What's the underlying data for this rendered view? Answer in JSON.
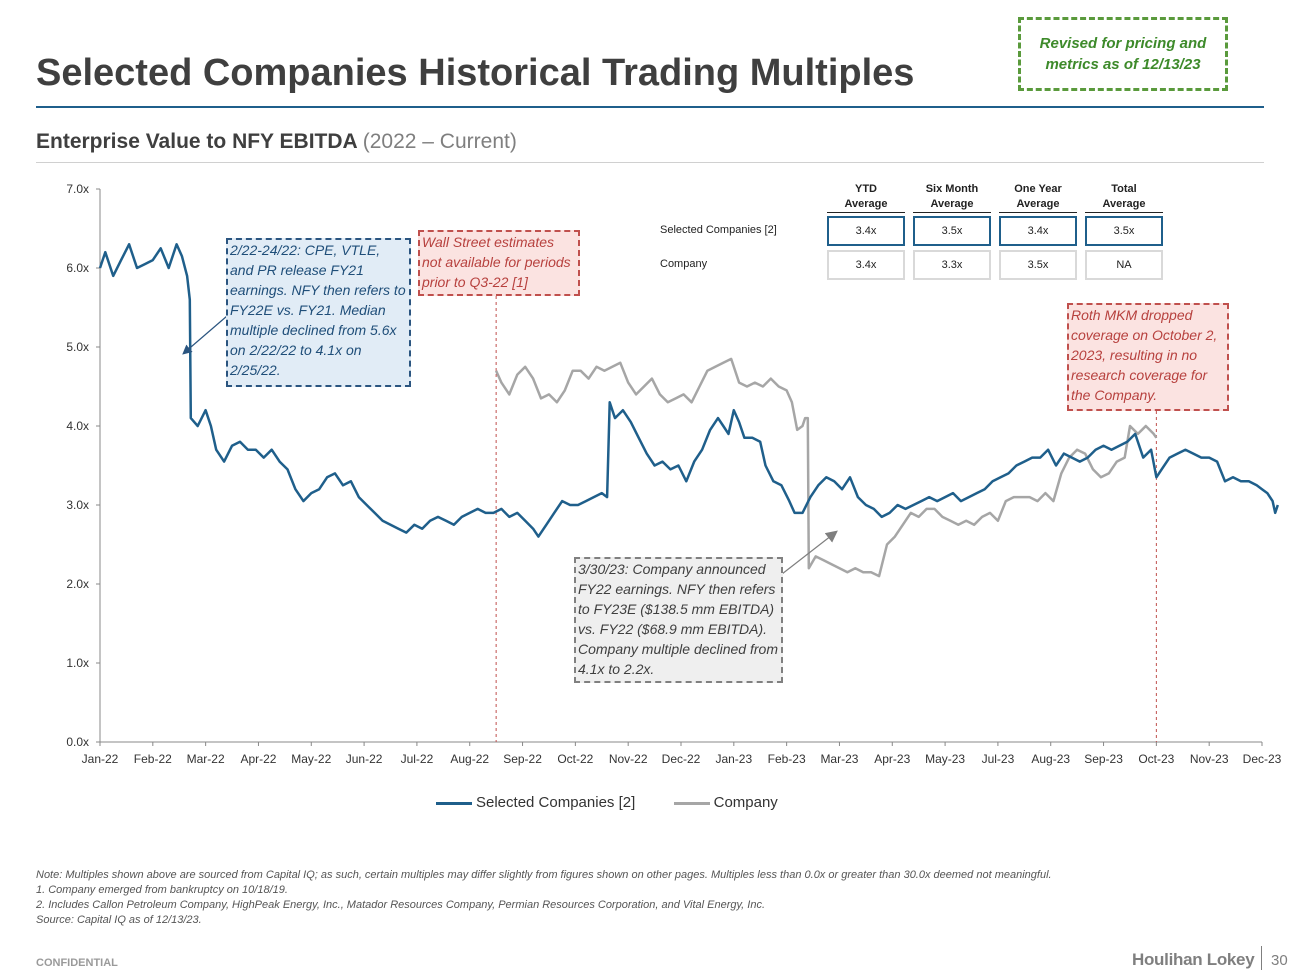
{
  "header": {
    "title": "Selected Companies Historical Trading Multiples",
    "revised_note": "Revised for pricing and metrics as of 12/13/23",
    "subtitle_bold": "Enterprise Value to NFY EBITDA",
    "subtitle_light": "(2022 – Current)"
  },
  "averages_table": {
    "columns": [
      {
        "line1": "YTD",
        "line2": "Average"
      },
      {
        "line1": "Six Month",
        "line2": "Average"
      },
      {
        "line1": "One Year",
        "line2": "Average"
      },
      {
        "line1": "Total",
        "line2": "Average"
      }
    ],
    "rows": [
      {
        "label": "Selected Companies [2]",
        "values": [
          "3.4x",
          "3.5x",
          "3.4x",
          "3.5x"
        ]
      },
      {
        "label": "Company",
        "values": [
          "3.4x",
          "3.3x",
          "3.5x",
          "NA"
        ]
      }
    ]
  },
  "annotations": {
    "feb22": "2/22-24/22: CPE, VTLE, and PR release FY21 earnings. NFY then refers to FY22E vs. FY21. Median multiple declined from 5.6x on 2/22/22 to 4.1x on 2/25/22.",
    "wall_street": "Wall Street estimates not available for periods prior to Q3-22 [1]",
    "roth": "Roth MKM dropped coverage on October 2, 2023, resulting in no research coverage for the Company.",
    "mar23": "3/30/23: Company announced FY22 earnings. NFY then refers to FY23E ($138.5 mm EBITDA) vs. FY22 ($68.9 mm EBITDA). Company multiple declined from 4.1x to 2.2x."
  },
  "chart_data": {
    "type": "line",
    "title": "Enterprise Value to NFY EBITDA (2022 – Current)",
    "xlabel": "",
    "ylabel": "",
    "ylim": [
      0,
      7
    ],
    "yticks": [
      "0.0x",
      "1.0x",
      "2.0x",
      "3.0x",
      "4.0x",
      "5.0x",
      "6.0x",
      "7.0x"
    ],
    "x_labels": [
      "Jan-22",
      "Feb-22",
      "Mar-22",
      "Apr-22",
      "May-22",
      "Jun-22",
      "Jul-22",
      "Aug-22",
      "Sep-22",
      "Oct-22",
      "Nov-22",
      "Dec-22",
      "Jan-23",
      "Feb-23",
      "Mar-23",
      "Apr-23",
      "May-23",
      "Jul-23",
      "Aug-23",
      "Sep-23",
      "Oct-23",
      "Nov-23",
      "Dec-23"
    ],
    "x_range": [
      0,
      22
    ],
    "reference_lines": [
      7.5,
      20.0
    ],
    "series": [
      {
        "name": "Selected Companies [2]",
        "color": "#1f5f8b",
        "points": [
          [
            0,
            6.0
          ],
          [
            0.1,
            6.2
          ],
          [
            0.25,
            5.9
          ],
          [
            0.4,
            6.1
          ],
          [
            0.55,
            6.3
          ],
          [
            0.7,
            6.0
          ],
          [
            0.85,
            6.05
          ],
          [
            1.0,
            6.1
          ],
          [
            1.15,
            6.25
          ],
          [
            1.3,
            6.0
          ],
          [
            1.45,
            6.3
          ],
          [
            1.55,
            6.15
          ],
          [
            1.65,
            5.9
          ],
          [
            1.7,
            5.6
          ],
          [
            1.72,
            4.1
          ],
          [
            1.85,
            4.0
          ],
          [
            2.0,
            4.2
          ],
          [
            2.1,
            4.0
          ],
          [
            2.2,
            3.7
          ],
          [
            2.35,
            3.55
          ],
          [
            2.5,
            3.75
          ],
          [
            2.65,
            3.8
          ],
          [
            2.8,
            3.7
          ],
          [
            2.95,
            3.7
          ],
          [
            3.1,
            3.6
          ],
          [
            3.25,
            3.7
          ],
          [
            3.4,
            3.55
          ],
          [
            3.55,
            3.45
          ],
          [
            3.7,
            3.2
          ],
          [
            3.85,
            3.05
          ],
          [
            4.0,
            3.15
          ],
          [
            4.15,
            3.2
          ],
          [
            4.3,
            3.35
          ],
          [
            4.45,
            3.4
          ],
          [
            4.6,
            3.25
          ],
          [
            4.75,
            3.3
          ],
          [
            4.9,
            3.1
          ],
          [
            5.05,
            3.0
          ],
          [
            5.2,
            2.9
          ],
          [
            5.35,
            2.8
          ],
          [
            5.5,
            2.75
          ],
          [
            5.65,
            2.7
          ],
          [
            5.8,
            2.65
          ],
          [
            5.95,
            2.75
          ],
          [
            6.1,
            2.7
          ],
          [
            6.25,
            2.8
          ],
          [
            6.4,
            2.85
          ],
          [
            6.55,
            2.8
          ],
          [
            6.7,
            2.75
          ],
          [
            6.85,
            2.85
          ],
          [
            7.0,
            2.9
          ],
          [
            7.15,
            2.95
          ],
          [
            7.3,
            2.9
          ],
          [
            7.45,
            2.9
          ],
          [
            7.6,
            2.95
          ],
          [
            7.75,
            2.85
          ],
          [
            7.9,
            2.9
          ],
          [
            8.05,
            2.8
          ],
          [
            8.2,
            2.7
          ],
          [
            8.3,
            2.6
          ],
          [
            8.45,
            2.75
          ],
          [
            8.6,
            2.9
          ],
          [
            8.75,
            3.05
          ],
          [
            8.9,
            3.0
          ],
          [
            9.05,
            3.0
          ],
          [
            9.2,
            3.05
          ],
          [
            9.35,
            3.1
          ],
          [
            9.5,
            3.15
          ],
          [
            9.6,
            3.1
          ],
          [
            9.65,
            4.3
          ],
          [
            9.75,
            4.1
          ],
          [
            9.9,
            4.2
          ],
          [
            10.05,
            4.05
          ],
          [
            10.2,
            3.85
          ],
          [
            10.35,
            3.65
          ],
          [
            10.5,
            3.5
          ],
          [
            10.65,
            3.55
          ],
          [
            10.8,
            3.45
          ],
          [
            10.95,
            3.5
          ],
          [
            11.1,
            3.3
          ],
          [
            11.25,
            3.55
          ],
          [
            11.4,
            3.7
          ],
          [
            11.55,
            3.95
          ],
          [
            11.7,
            4.1
          ],
          [
            11.8,
            4.0
          ],
          [
            11.9,
            3.9
          ],
          [
            12.0,
            4.2
          ],
          [
            12.1,
            4.05
          ],
          [
            12.2,
            3.85
          ],
          [
            12.35,
            3.85
          ],
          [
            12.5,
            3.8
          ],
          [
            12.6,
            3.5
          ],
          [
            12.75,
            3.3
          ],
          [
            12.9,
            3.25
          ],
          [
            13.05,
            3.05
          ],
          [
            13.15,
            2.9
          ],
          [
            13.3,
            2.9
          ],
          [
            13.45,
            3.1
          ],
          [
            13.6,
            3.25
          ],
          [
            13.75,
            3.35
          ],
          [
            13.9,
            3.3
          ],
          [
            14.05,
            3.2
          ],
          [
            14.2,
            3.35
          ],
          [
            14.35,
            3.1
          ],
          [
            14.5,
            3.0
          ],
          [
            14.65,
            2.95
          ],
          [
            14.8,
            2.85
          ],
          [
            14.95,
            2.9
          ],
          [
            15.1,
            3.0
          ],
          [
            15.25,
            2.95
          ],
          [
            15.4,
            3.0
          ],
          [
            15.55,
            3.05
          ],
          [
            15.7,
            3.1
          ],
          [
            15.85,
            3.05
          ],
          [
            16.0,
            3.1
          ],
          [
            16.15,
            3.15
          ],
          [
            16.3,
            3.05
          ],
          [
            16.45,
            3.1
          ],
          [
            16.6,
            3.15
          ],
          [
            16.75,
            3.2
          ],
          [
            16.9,
            3.3
          ],
          [
            17.05,
            3.35
          ],
          [
            17.2,
            3.4
          ],
          [
            17.35,
            3.5
          ],
          [
            17.5,
            3.55
          ],
          [
            17.65,
            3.6
          ],
          [
            17.8,
            3.6
          ],
          [
            17.95,
            3.7
          ],
          [
            18.1,
            3.5
          ],
          [
            18.25,
            3.65
          ],
          [
            18.4,
            3.6
          ],
          [
            18.55,
            3.55
          ],
          [
            18.7,
            3.6
          ],
          [
            18.85,
            3.7
          ],
          [
            19.0,
            3.75
          ],
          [
            19.15,
            3.7
          ],
          [
            19.3,
            3.75
          ],
          [
            19.45,
            3.8
          ],
          [
            19.6,
            3.9
          ],
          [
            19.75,
            3.6
          ],
          [
            19.9,
            3.7
          ],
          [
            20.0,
            3.35
          ],
          [
            20.1,
            3.45
          ],
          [
            20.25,
            3.6
          ],
          [
            20.4,
            3.65
          ],
          [
            20.55,
            3.7
          ],
          [
            20.7,
            3.65
          ],
          [
            20.85,
            3.6
          ],
          [
            21.0,
            3.6
          ],
          [
            21.15,
            3.55
          ],
          [
            21.3,
            3.3
          ],
          [
            21.45,
            3.35
          ],
          [
            21.6,
            3.3
          ],
          [
            21.75,
            3.3
          ],
          [
            21.9,
            3.25
          ],
          [
            22.0,
            3.2
          ],
          [
            22.1,
            3.15
          ],
          [
            22.2,
            3.05
          ],
          [
            22.25,
            2.9
          ],
          [
            22.3,
            3.0
          ]
        ]
      },
      {
        "name": "Company",
        "color": "#a6a6a6",
        "points": [
          [
            7.5,
            4.7
          ],
          [
            7.6,
            4.55
          ],
          [
            7.75,
            4.4
          ],
          [
            7.9,
            4.65
          ],
          [
            8.05,
            4.75
          ],
          [
            8.2,
            4.6
          ],
          [
            8.35,
            4.35
          ],
          [
            8.5,
            4.4
          ],
          [
            8.65,
            4.3
          ],
          [
            8.8,
            4.45
          ],
          [
            8.95,
            4.7
          ],
          [
            9.1,
            4.7
          ],
          [
            9.25,
            4.6
          ],
          [
            9.4,
            4.75
          ],
          [
            9.55,
            4.7
          ],
          [
            9.7,
            4.75
          ],
          [
            9.85,
            4.8
          ],
          [
            10.0,
            4.55
          ],
          [
            10.15,
            4.4
          ],
          [
            10.3,
            4.5
          ],
          [
            10.45,
            4.6
          ],
          [
            10.6,
            4.4
          ],
          [
            10.75,
            4.3
          ],
          [
            10.9,
            4.35
          ],
          [
            11.05,
            4.4
          ],
          [
            11.2,
            4.3
          ],
          [
            11.35,
            4.5
          ],
          [
            11.5,
            4.7
          ],
          [
            11.65,
            4.75
          ],
          [
            11.8,
            4.8
          ],
          [
            11.95,
            4.85
          ],
          [
            12.1,
            4.55
          ],
          [
            12.25,
            4.5
          ],
          [
            12.4,
            4.55
          ],
          [
            12.55,
            4.5
          ],
          [
            12.7,
            4.6
          ],
          [
            12.85,
            4.5
          ],
          [
            13.0,
            4.45
          ],
          [
            13.1,
            4.3
          ],
          [
            13.2,
            3.95
          ],
          [
            13.3,
            4.0
          ],
          [
            13.35,
            4.1
          ],
          [
            13.4,
            4.1
          ],
          [
            13.42,
            2.2
          ],
          [
            13.55,
            2.35
          ],
          [
            13.7,
            2.3
          ],
          [
            13.85,
            2.25
          ],
          [
            14.0,
            2.2
          ],
          [
            14.15,
            2.15
          ],
          [
            14.3,
            2.2
          ],
          [
            14.45,
            2.15
          ],
          [
            14.6,
            2.15
          ],
          [
            14.75,
            2.1
          ],
          [
            14.9,
            2.5
          ],
          [
            15.05,
            2.6
          ],
          [
            15.2,
            2.75
          ],
          [
            15.35,
            2.9
          ],
          [
            15.5,
            2.85
          ],
          [
            15.65,
            2.95
          ],
          [
            15.8,
            2.95
          ],
          [
            15.95,
            2.85
          ],
          [
            16.1,
            2.8
          ],
          [
            16.25,
            2.75
          ],
          [
            16.4,
            2.8
          ],
          [
            16.55,
            2.75
          ],
          [
            16.7,
            2.85
          ],
          [
            16.85,
            2.9
          ],
          [
            17.0,
            2.8
          ],
          [
            17.15,
            3.05
          ],
          [
            17.3,
            3.1
          ],
          [
            17.45,
            3.1
          ],
          [
            17.6,
            3.1
          ],
          [
            17.75,
            3.05
          ],
          [
            17.9,
            3.15
          ],
          [
            18.05,
            3.05
          ],
          [
            18.2,
            3.4
          ],
          [
            18.35,
            3.6
          ],
          [
            18.5,
            3.7
          ],
          [
            18.65,
            3.65
          ],
          [
            18.8,
            3.45
          ],
          [
            18.95,
            3.35
          ],
          [
            19.1,
            3.4
          ],
          [
            19.25,
            3.55
          ],
          [
            19.4,
            3.6
          ],
          [
            19.5,
            4.0
          ],
          [
            19.65,
            3.9
          ],
          [
            19.8,
            4.0
          ],
          [
            19.95,
            3.9
          ],
          [
            20.0,
            3.85
          ]
        ]
      }
    ],
    "legend": [
      "Selected Companies [2]",
      "Company"
    ],
    "legend_position": "bottom-center"
  },
  "footnotes": [
    "Note: Multiples shown above are sourced from Capital IQ; as such, certain multiples may differ slightly from figures shown on other pages. Multiples less than 0.0x or greater than 30.0x deemed not meaningful.",
    "1. Company emerged from bankruptcy on 10/18/19.",
    "2.  Includes Callon Petroleum Company, HighPeak Energy, Inc., Matador Resources Company, Permian Resources Corporation, and Vital Energy, Inc.",
    "Source: Capital IQ as of 12/13/23."
  ],
  "footer": {
    "confidential": "CONFIDENTIAL",
    "logo_text": "Houlihan Lokey",
    "page_number": "30"
  }
}
